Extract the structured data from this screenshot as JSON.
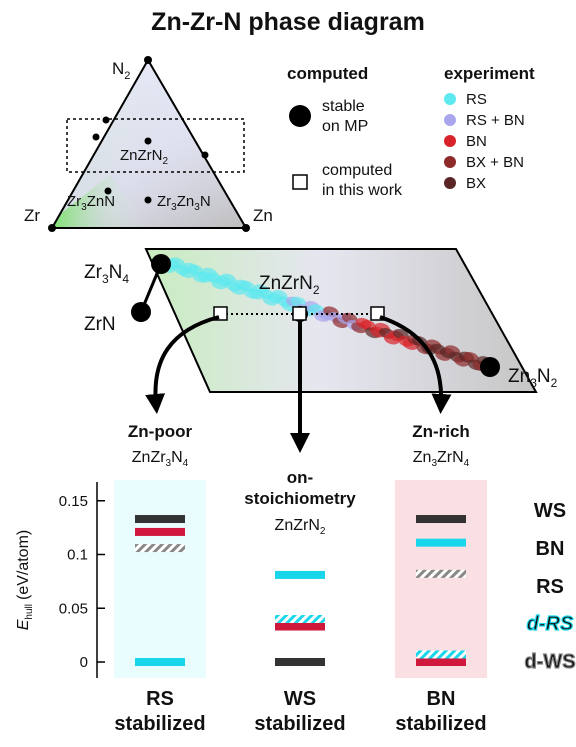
{
  "title": "Zn-Zr-N phase diagram",
  "ternary": {
    "vertex_labels": {
      "top": "N",
      "top_sub": "2",
      "left": "Zr",
      "right": "Zn"
    },
    "phases": [
      {
        "id": "znzrn2",
        "label": "ZnZrN",
        "sub": "2"
      },
      {
        "id": "zr3znn",
        "label_parts": [
          "Zr",
          "3",
          "ZnN",
          ""
        ]
      },
      {
        "id": "zr3zn3n",
        "label_parts": [
          "Zr",
          "3",
          "Zn",
          "3",
          "N",
          ""
        ]
      }
    ]
  },
  "legend_computed": {
    "title": "computed",
    "stable_label_line1": "stable",
    "stable_label_line2": "on MP",
    "this_work_line1": "computed",
    "this_work_line2": "in this work"
  },
  "legend_experiment": {
    "title": "experiment",
    "items": [
      {
        "label": "RS",
        "color": "#5ee8f0"
      },
      {
        "label": "RS + BN",
        "color": "#a9a6ee"
      },
      {
        "label": "BN",
        "color": "#d8232a"
      },
      {
        "label": "BX + BN",
        "color": "#8e2a2a"
      },
      {
        "label": "BX",
        "color": "#5a2525"
      }
    ]
  },
  "slice": {
    "labels": {
      "zr3n4": [
        "Zr",
        "3",
        "N",
        "4"
      ],
      "zrn": "ZrN",
      "znzrn2": [
        "ZnZrN",
        "2"
      ],
      "zn3n2": [
        "Zn",
        "3",
        "N",
        "2"
      ]
    }
  },
  "compositions": [
    {
      "heading": "Zn-poor",
      "formula": [
        "ZnZr",
        "3",
        "N",
        "4"
      ]
    },
    {
      "heading_line1": "on-",
      "heading_line2": "stoichiometry",
      "formula": [
        "ZnZrN",
        "2"
      ]
    },
    {
      "heading": "Zn-rich",
      "formula": [
        "Zn",
        "3",
        "ZrN",
        "4"
      ]
    }
  ],
  "chart_data": {
    "type": "bar",
    "ylabel": "E",
    "ylabel_sub": "hull",
    "ylabel_unit": "(eV/atom)",
    "ylim": [
      0,
      0.16
    ],
    "yticks": [
      0,
      0.05,
      0.1,
      0.15
    ],
    "ytick_labels": [
      "0",
      "0.05",
      "0.1",
      "0.15"
    ],
    "categories": [
      "ZnZr3N4",
      "ZnZrN2",
      "Zn3ZrN4"
    ],
    "series": [
      {
        "name": "WS",
        "color": "#333333",
        "values": [
          0.133,
          0.0,
          0.133
        ]
      },
      {
        "name": "BN",
        "color": "#d0173c",
        "values": [
          0.121,
          0.033,
          0.0
        ]
      },
      {
        "name": "RS",
        "color": "#1ad6ea",
        "values": [
          0.0,
          0.081,
          0.111
        ]
      },
      {
        "name": "d-RS",
        "color": "#1ad6ea",
        "hatched": true,
        "values": [
          null,
          0.04,
          0.007
        ]
      },
      {
        "name": "d-WS",
        "color": "#888888",
        "hatched": true,
        "values": [
          0.106,
          null,
          0.082
        ]
      }
    ],
    "column_backgrounds": [
      "#e9fdfe",
      "#ffffff",
      "#fadfe3"
    ]
  },
  "stabilized": [
    {
      "line1": "RS",
      "line2": "stabilized",
      "color": "#1ad6ea"
    },
    {
      "line1": "WS",
      "line2": "stabilized",
      "color": "#333333"
    },
    {
      "line1": "BN",
      "line2": "stabilized",
      "color": "#d0173c"
    }
  ]
}
